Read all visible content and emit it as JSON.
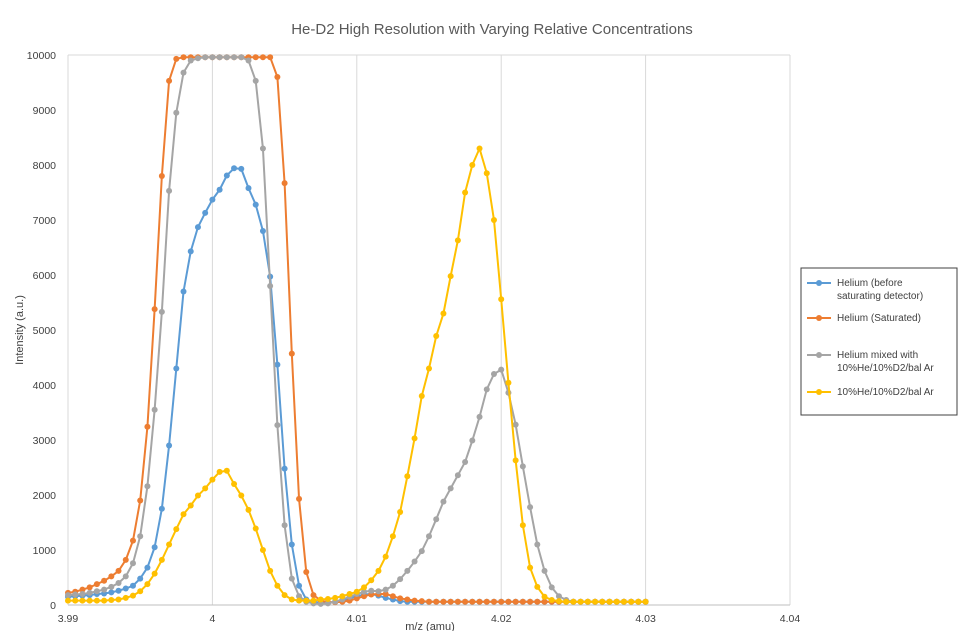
{
  "chart_data": {
    "type": "line",
    "title": "He-D2 High Resolution with Varying Relative Concentrations",
    "xlabel": "m/z (amu)",
    "ylabel": "Intensity (a.u.)",
    "xlim": [
      3.99,
      4.04
    ],
    "ylim": [
      0,
      10000
    ],
    "x_ticks": [
      3.99,
      4.0,
      4.01,
      4.02,
      4.03,
      4.04
    ],
    "x_tick_labels": [
      "3.99",
      "4",
      "4.01",
      "4.02",
      "4.03",
      "4.04"
    ],
    "y_ticks": [
      0,
      1000,
      2000,
      3000,
      4000,
      5000,
      6000,
      7000,
      8000,
      9000,
      10000
    ],
    "y_tick_labels": [
      "0",
      "1000",
      "2000",
      "3000",
      "4000",
      "5000",
      "6000",
      "7000",
      "8000",
      "9000",
      "10000"
    ],
    "grid": "vertical",
    "legend_position": "right",
    "x_start": 3.99,
    "x_step": 0.0005,
    "series": [
      {
        "name": "Helium (before saturating detector)",
        "color": "#5b9bd5",
        "values": [
          150,
          160,
          170,
          180,
          200,
          210,
          230,
          260,
          300,
          350,
          480,
          680,
          1050,
          1750,
          2900,
          4300,
          5700,
          6430,
          6870,
          7130,
          7370,
          7550,
          7810,
          7940,
          7930,
          7580,
          7280,
          6800,
          5970,
          4370,
          2480,
          1100,
          350,
          100,
          60,
          40,
          40,
          60,
          80,
          120,
          160,
          190,
          200,
          170,
          130,
          100,
          70,
          60,
          60,
          60,
          60,
          60,
          60,
          60,
          60,
          60,
          60,
          60,
          60,
          60,
          60,
          60,
          60,
          60,
          60,
          60,
          60,
          60,
          60,
          60,
          60,
          60,
          60,
          60,
          60,
          60,
          60,
          60,
          60,
          60,
          60
        ]
      },
      {
        "name": "Helium (Saturated)",
        "color": "#ed7d31",
        "values": [
          220,
          240,
          280,
          320,
          380,
          440,
          520,
          620,
          820,
          1170,
          1900,
          3240,
          5380,
          7800,
          9530,
          9930,
          9960,
          9960,
          9960,
          9960,
          9960,
          9960,
          9960,
          9960,
          9960,
          9960,
          9960,
          9960,
          9960,
          9600,
          7670,
          4570,
          1930,
          600,
          180,
          80,
          50,
          50,
          60,
          80,
          120,
          160,
          190,
          200,
          200,
          160,
          120,
          100,
          80,
          70,
          60,
          60,
          60,
          60,
          60,
          60,
          60,
          60,
          60,
          60,
          60,
          60,
          60,
          60,
          60,
          60,
          60,
          60,
          60,
          60,
          60,
          60,
          60,
          60,
          60,
          60,
          60,
          60,
          60,
          60,
          60
        ]
      },
      {
        "name": "Helium mixed with 10%He/10%D2/bal Ar",
        "color": "#a5a5a5",
        "values": [
          180,
          190,
          200,
          220,
          250,
          280,
          330,
          400,
          520,
          760,
          1250,
          2160,
          3550,
          5330,
          7530,
          8950,
          9680,
          9900,
          9940,
          9960,
          9960,
          9960,
          9960,
          9960,
          9960,
          9900,
          9530,
          8300,
          5800,
          3270,
          1450,
          480,
          160,
          60,
          30,
          20,
          30,
          60,
          100,
          150,
          200,
          240,
          260,
          250,
          280,
          350,
          470,
          620,
          790,
          980,
          1250,
          1560,
          1880,
          2120,
          2360,
          2600,
          2990,
          3420,
          3920,
          4200,
          4280,
          3860,
          3280,
          2520,
          1780,
          1100,
          620,
          320,
          160,
          90,
          60,
          60,
          60,
          60,
          60,
          60,
          60,
          60,
          60,
          60,
          60
        ]
      },
      {
        "name": "10%He/10%D2/bal Ar",
        "color": "#ffc000",
        "values": [
          80,
          80,
          80,
          80,
          80,
          80,
          90,
          100,
          130,
          170,
          250,
          380,
          570,
          820,
          1100,
          1380,
          1650,
          1810,
          1990,
          2120,
          2280,
          2420,
          2440,
          2200,
          1990,
          1730,
          1390,
          1000,
          620,
          350,
          180,
          100,
          80,
          80,
          80,
          100,
          110,
          130,
          160,
          200,
          240,
          320,
          450,
          620,
          880,
          1250,
          1690,
          2340,
          3030,
          3800,
          4300,
          4890,
          5300,
          5980,
          6630,
          7500,
          8000,
          8300,
          7850,
          7000,
          5560,
          4040,
          2630,
          1450,
          680,
          330,
          150,
          90,
          70,
          60,
          60,
          60,
          60,
          60,
          60,
          60,
          60,
          60,
          60,
          60,
          60
        ]
      }
    ]
  }
}
